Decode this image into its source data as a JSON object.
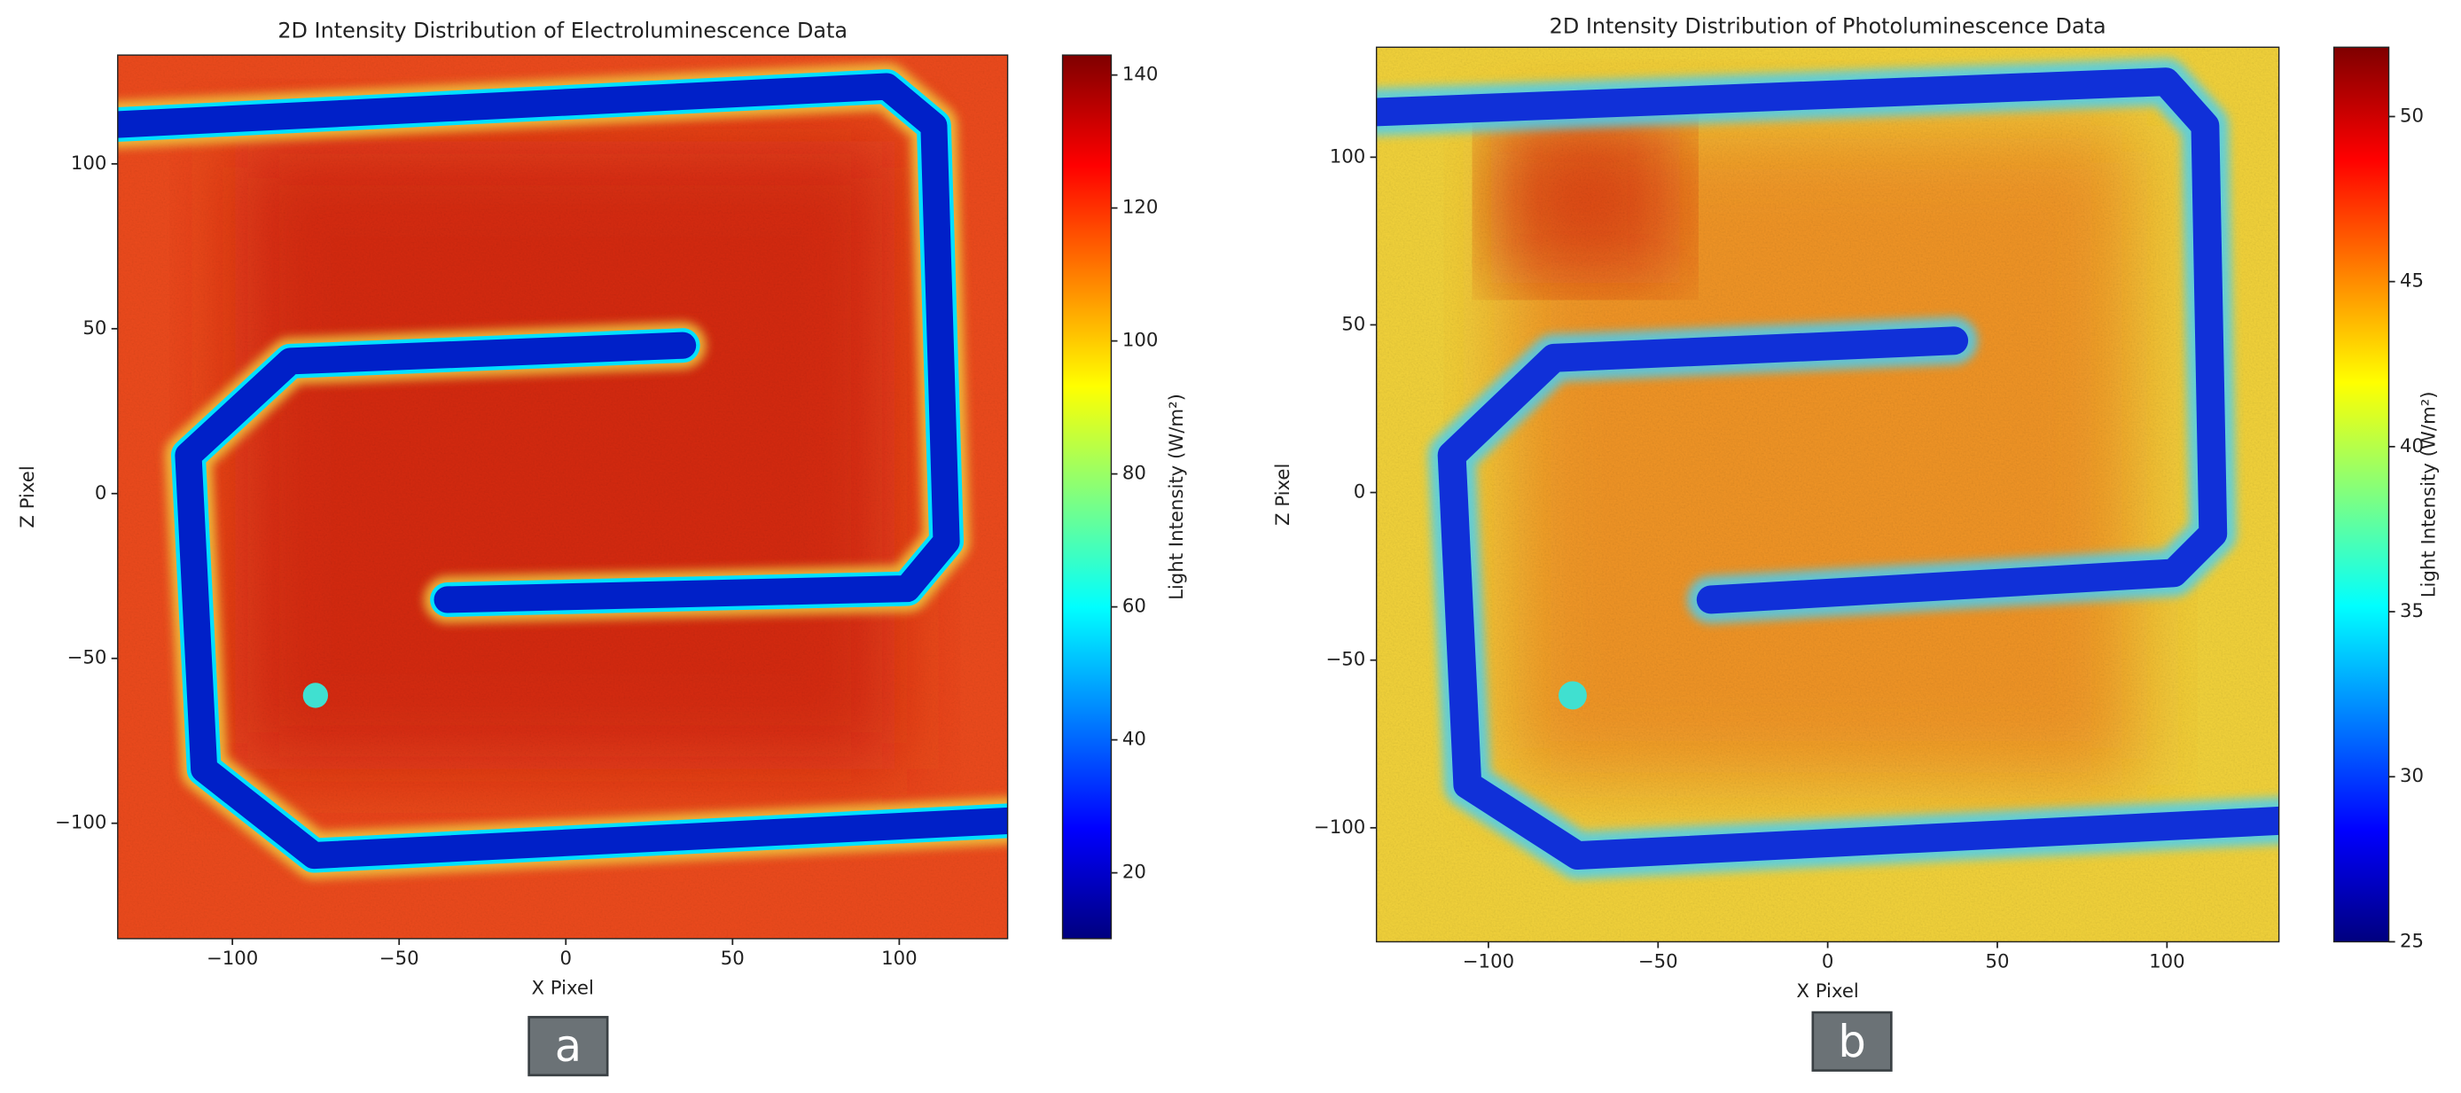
{
  "chart_data": [
    {
      "type": "heatmap",
      "title": "2D Intensity Distribution of Electroluminescence Data",
      "xlabel": "X Pixel",
      "ylabel": "Z Pixel",
      "xlim": [
        -134.4,
        132.5
      ],
      "ylim": [
        -135,
        133
      ],
      "xticks": [
        {
          "value": -100,
          "label": "−100"
        },
        {
          "value": -50,
          "label": "−50"
        },
        0,
        50,
        100
      ],
      "yticks": [
        {
          "value": -100,
          "label": "−100"
        },
        {
          "value": -50,
          "label": "−50"
        },
        0,
        50,
        100
      ],
      "colormap": "jet",
      "colorbar_label": "Light Intensity (W/m²)",
      "clim": [
        10.1,
        143
      ],
      "cticks": [
        20,
        40,
        60,
        80,
        100,
        120,
        140
      ],
      "panel_label": "a"
    },
    {
      "type": "heatmap",
      "title": "2D Intensity Distribution of Photoluminescence Data",
      "xlabel": "X Pixel",
      "ylabel": "Z Pixel",
      "xlim": [
        -133,
        133
      ],
      "ylim": [
        -134,
        132.8
      ],
      "xticks": [
        {
          "value": -100,
          "label": "−100"
        },
        {
          "value": -50,
          "label": "−50"
        },
        0,
        50,
        100
      ],
      "yticks": [
        {
          "value": -100,
          "label": "−100"
        },
        {
          "value": -50,
          "label": "−50"
        },
        0,
        50,
        100
      ],
      "colormap": "jet",
      "colorbar_label": "Light Intensity (W/m²)",
      "clim": [
        25,
        52.1
      ],
      "cticks": [
        25,
        30,
        35,
        40,
        45,
        50
      ],
      "panel_label": "b"
    }
  ]
}
